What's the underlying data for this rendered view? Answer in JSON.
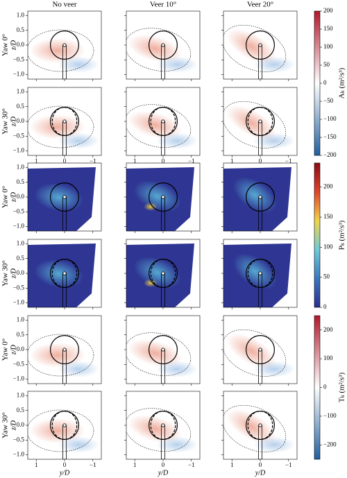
{
  "column_titles": [
    "No veer",
    "Veer 10°",
    "Veer 20°"
  ],
  "row_labels": [
    "Yaw 0°",
    "Yaw 30°"
  ],
  "y_label": "z/D",
  "x_label": "y/D",
  "ylim": [
    -1.15,
    1.15
  ],
  "yticks": [
    {
      "value": 1,
      "label": "1.0"
    },
    0.5,
    {
      "value": 0,
      "label": "0.0"
    },
    {
      "value": -0.5,
      "label": "−0.5"
    },
    {
      "value": -1,
      "label": "−1.0"
    }
  ],
  "xlim": [
    1.3,
    -1.3
  ],
  "xticks": [
    1,
    0,
    {
      "value": -1,
      "label": "−1"
    }
  ],
  "colorbars": [
    {
      "label": "Aₖ (m²/s³)",
      "lim": [
        -200,
        200
      ],
      "colors": [
        "#1f5fa0",
        "#ffffff",
        "#b2182b"
      ],
      "ticks": [
        {
          "value": -200,
          "label": "−200"
        },
        {
          "value": -150,
          "label": "−150"
        },
        {
          "value": -100,
          "label": "−100"
        },
        {
          "value": -50,
          "label": "−50"
        },
        0,
        50,
        100,
        150,
        200
      ]
    },
    {
      "label": "Pₖ (m²/s³)",
      "lim": [
        0,
        240
      ],
      "colors": [
        "#2a2f8e",
        "#3a78c0",
        "#6fcbd8",
        "#f3d44a",
        "#e0452a",
        "#8b0b12"
      ],
      "ticks": [
        0,
        50,
        100,
        150,
        200
      ]
    },
    {
      "label": "Tₖ (m²/s³)",
      "lim": [
        -250,
        250
      ],
      "colors": [
        "#1f5fa0",
        "#ffffff",
        "#b2182b"
      ],
      "ticks": [
        {
          "value": -200,
          "label": "−200"
        },
        {
          "value": -100,
          "label": "−100"
        },
        0,
        100,
        200
      ]
    }
  ]
}
